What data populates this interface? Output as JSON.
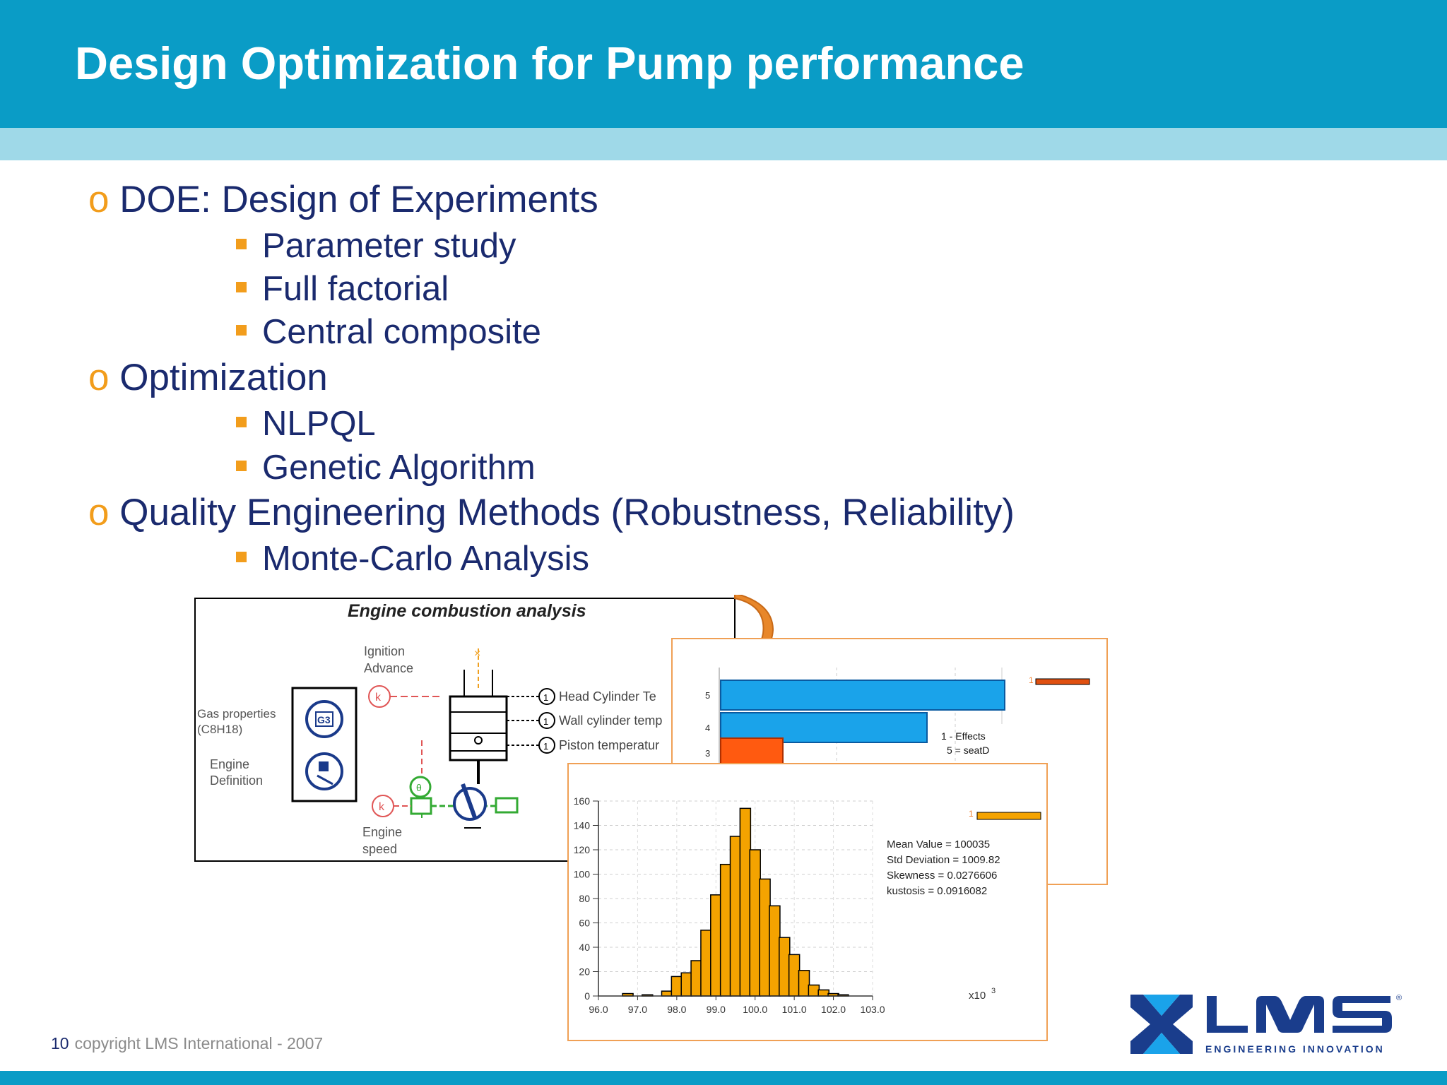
{
  "header": {
    "title": "Design Optimization for Pump performance"
  },
  "bullets": [
    {
      "marker": "o",
      "text": "DOE:  Design of Experiments",
      "sub": [
        "Parameter study",
        "Full factorial",
        "Central composite"
      ]
    },
    {
      "marker": "o",
      "text": "Optimization",
      "sub": [
        "NLPQL",
        "Genetic Algorithm"
      ]
    },
    {
      "marker": "o",
      "text": "Quality Engineering Methods (Robustness, Reliability)",
      "sub": [
        "Monte-Carlo Analysis"
      ]
    }
  ],
  "engine": {
    "title": "Engine combustion analysis",
    "ignition": [
      "Ignition",
      "Advance"
    ],
    "gas": [
      "Gas properties",
      "(C8H18)"
    ],
    "engine_def": [
      "Engine",
      "Definition"
    ],
    "engine_speed": [
      "Engine",
      "speed"
    ],
    "outputs": [
      "Head Cylinder Te",
      "Wall cylinder temp",
      "Piston temperatur"
    ]
  },
  "effects_chart": {
    "rows": [
      "5",
      "4",
      "3"
    ],
    "legend": [
      "1 - Effects",
      "5 = seatD"
    ]
  },
  "chart_data": {
    "type": "bar",
    "x": [
      96.75,
      97.25,
      97.75,
      98.0,
      98.25,
      98.5,
      98.75,
      99.0,
      99.25,
      99.5,
      99.75,
      100.0,
      100.25,
      100.5,
      100.75,
      101.0,
      101.25,
      101.5,
      101.75,
      102.0,
      102.25
    ],
    "values": [
      2,
      1,
      4,
      16,
      19,
      29,
      54,
      83,
      108,
      131,
      154,
      120,
      96,
      74,
      48,
      34,
      21,
      9,
      5,
      2,
      1
    ],
    "xticks": [
      "96.0",
      "97.0",
      "98.0",
      "99.0",
      "100.0",
      "101.0",
      "102.0",
      "103.0"
    ],
    "yticks": [
      "0",
      "20",
      "40",
      "60",
      "80",
      "100",
      "120",
      "140",
      "160"
    ],
    "xlim": [
      96.0,
      103.0
    ],
    "ylim": [
      0,
      160
    ],
    "x_multiplier": "x10",
    "x_multiplier_exp": "3",
    "legend": "1",
    "bar_color": "#f4a300",
    "stats": [
      "Mean Value = 100035",
      "Std Deviation = 1009.82",
      "Skewness = 0.0276606",
      "kustosis = 0.0916082"
    ]
  },
  "footer": {
    "page": "10",
    "copyright": "copyright LMS International - 2007"
  },
  "logo": {
    "name": "LMS",
    "tagline": "ENGINEERING INNOVATION"
  }
}
